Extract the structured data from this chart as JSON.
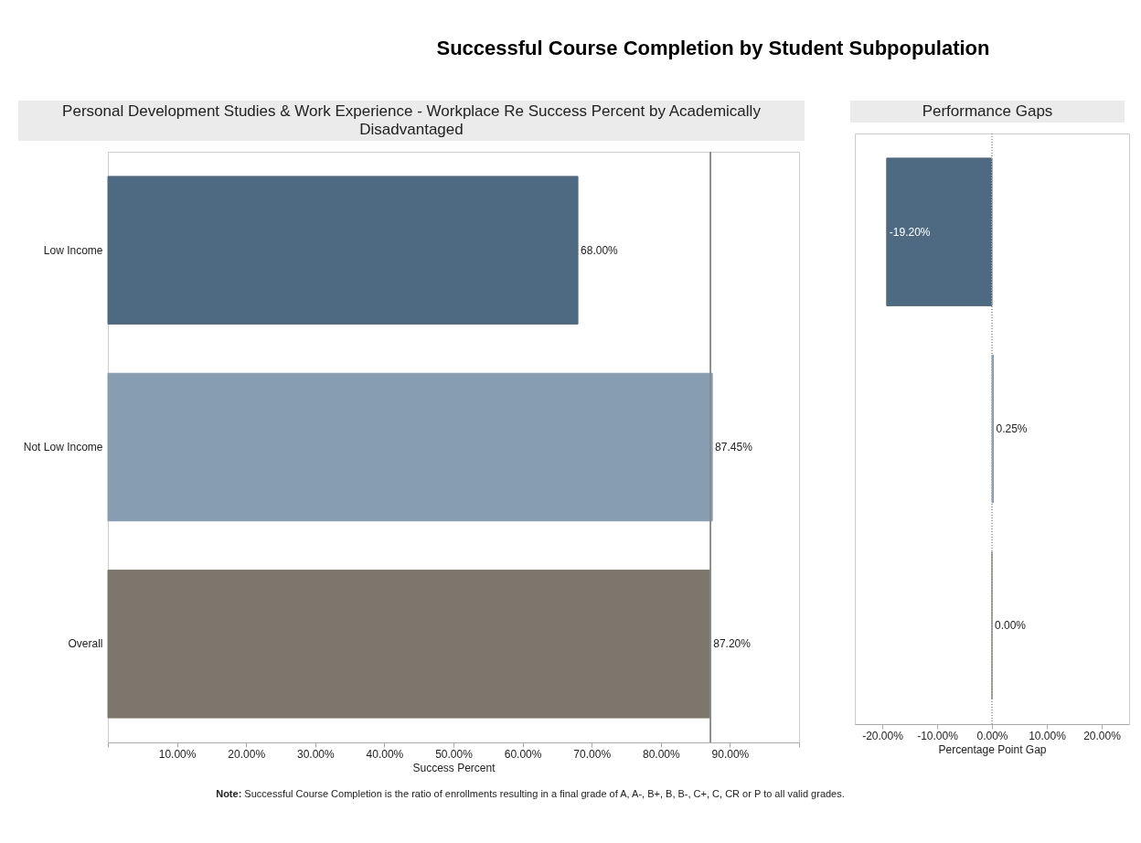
{
  "chart_data": [
    {
      "type": "bar",
      "orientation": "horizontal",
      "title": "Successful Course Completion by Student Subpopulation",
      "subtitle": "Personal Development Studies & Work Experience - Workplace Re Success Percent by Academically Disadvantaged",
      "xlabel": "Success Percent",
      "categories": [
        "Low Income",
        "Not Low Income",
        "Overall"
      ],
      "values": [
        68.0,
        87.45,
        87.2
      ],
      "colors": [
        "#4e6a82",
        "#869db2",
        "#7d766c"
      ],
      "value_labels": [
        "68.00%",
        "87.45%",
        "87.20%"
      ],
      "xlim": [
        0,
        100
      ],
      "xticks": [
        {
          "value": 0,
          "label": null
        },
        {
          "value": 10,
          "label": "10.00%"
        },
        {
          "value": 20,
          "label": "20.00%"
        },
        {
          "value": 30,
          "label": "30.00%"
        },
        {
          "value": 40,
          "label": "40.00%"
        },
        {
          "value": 50,
          "label": "50.00%"
        },
        {
          "value": 60,
          "label": "60.00%"
        },
        {
          "value": 70,
          "label": "70.00%"
        },
        {
          "value": 80,
          "label": "80.00%"
        },
        {
          "value": 90,
          "label": "90.00%"
        },
        {
          "value": 100,
          "label": null
        }
      ],
      "ref_lines": [
        {
          "axis": "x",
          "value": 87.2,
          "color": "#8a8a8a"
        }
      ],
      "grid": false,
      "annotations": [
        "Note: Successful Course Completion is the ratio of enrollments resulting in a final grade of A, A-, B+, B, B-, C+, C, CR or P to all valid grades."
      ]
    },
    {
      "type": "bar",
      "orientation": "horizontal",
      "title": "Performance Gaps",
      "xlabel": "Percentage Point Gap",
      "categories": [
        null,
        null,
        null
      ],
      "values": [
        -19.2,
        0.25,
        0.0
      ],
      "colors": [
        "#4e6a82",
        "#869db2",
        "#7d766c"
      ],
      "value_labels": [
        "-19.20%",
        "0.25%",
        "0.00%"
      ],
      "xlim": [
        -25,
        25
      ],
      "xticks": [
        {
          "value": -20,
          "label": "-20.00%"
        },
        {
          "value": -10,
          "label": "-10.00%"
        },
        {
          "value": 0,
          "label": "0.00%"
        },
        {
          "value": 10,
          "label": "10.00%"
        },
        {
          "value": 20,
          "label": "20.00%"
        }
      ],
      "ref_lines": [
        {
          "axis": "x",
          "value": 0,
          "color": "#aaaaaa",
          "line_style": "dotted"
        }
      ],
      "tick_labels": "x",
      "grid": false
    }
  ]
}
